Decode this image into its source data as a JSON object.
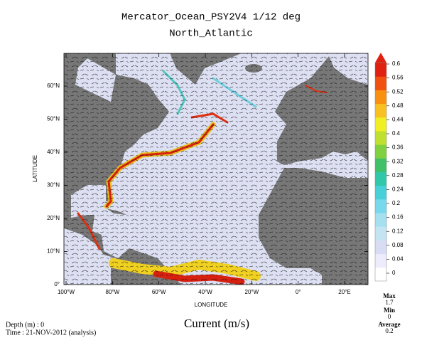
{
  "map": {
    "title": "Mercator_Ocean_PSY2V4 1/12 deg",
    "subtitle": "North_Atlantic",
    "x_label": "LONGITUDE",
    "y_label": "LATITUDE",
    "variable": "Current (m/s)",
    "depth": "Depth (m) : 0",
    "time": "Time : 21-NOV-2012 (analysis)",
    "lon_ticks": [
      "100°W",
      "80°W",
      "60°W",
      "40°W",
      "20°W",
      "0°",
      "20°E"
    ],
    "lat_ticks": [
      "0°",
      "10°N",
      "20°N",
      "30°N",
      "40°N",
      "50°N",
      "60°N"
    ],
    "colorbar": {
      "ticks": [
        0,
        0.04,
        0.08,
        0.12,
        0.16,
        0.2,
        0.24,
        0.28,
        0.32,
        0.36,
        0.4,
        0.44,
        0.48,
        0.52,
        0.56,
        0.6
      ]
    },
    "stats": [
      {
        "label": "Max",
        "value": 1.7
      },
      {
        "label": "Min",
        "value": 0
      },
      {
        "label": "Average",
        "value": 0.2
      }
    ]
  }
}
